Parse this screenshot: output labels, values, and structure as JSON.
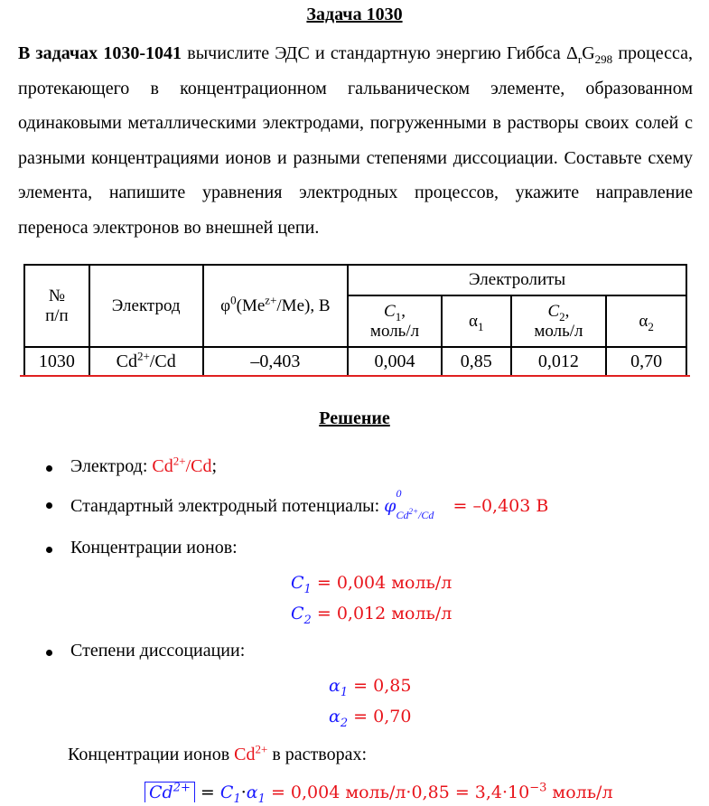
{
  "title": "Задача 1030",
  "intro": [
    "В задачах 1030-1041",
    " вычислите ЭДС и стандартную энергию Гиббса Δ",
    "r",
    "G",
    "298",
    " процесса, протекающего в концентрационном гальваническом элементе, образованном одинаковыми металлическими электродами, погруженными в растворы своих солей с разными концентрациями ионов и разными степенями диссоциации. Составьте схему элемента, напишите уравнения электродных процессов, укажите направление переноса электронов во внешней цепи."
  ],
  "table": {
    "header": {
      "num": [
        "№",
        "п/п"
      ],
      "electrode": "Электрод",
      "potential": [
        "φ",
        "0",
        "(Me",
        "z+",
        "/Me), В"
      ],
      "electrolytes": "Электролиты",
      "c1": [
        "C",
        "1",
        ",",
        "моль/л"
      ],
      "a1": [
        "α",
        "1"
      ],
      "c2": [
        "C",
        "2",
        ",",
        "моль/л"
      ],
      "a2": [
        "α",
        "2"
      ]
    },
    "row": {
      "num": "1030",
      "electrode": [
        "Cd",
        "2+",
        "/Cd"
      ],
      "potential": "–0,403",
      "c1": "0,004",
      "a1": "0,85",
      "c2": "0,012",
      "a2": "0,70"
    }
  },
  "solution": {
    "heading": "Решение",
    "electrode": [
      "Электрод: ",
      "Cd",
      "2+",
      "/Cd",
      ";"
    ],
    "potential": [
      "Стандартный электродный потенциалы: ",
      "φ",
      "0",
      "Cd",
      "2+",
      "/Cd",
      "= –0,403 В"
    ],
    "concentrations": {
      "label": "Концентрации ионов:",
      "c1": [
        "C",
        "1",
        "= 0,004 моль/л"
      ],
      "c2": [
        "C",
        "2",
        "= 0,012 моль/л"
      ]
    },
    "dissociation": {
      "label": "Степени диссоциации:",
      "a1": [
        "α",
        "1",
        "= 0,85"
      ],
      "a2": [
        "α",
        "2",
        "= 0,70"
      ]
    },
    "ion_conc": [
      "Концентрации ионов ",
      "Cd",
      "2+",
      " в растворах:"
    ],
    "formula": [
      "Cd",
      "2+",
      "=",
      "C",
      "1",
      "·",
      "α",
      "1",
      "= 0,004 моль/л·0,85 = 3,4·10",
      "−3",
      " моль/л"
    ]
  }
}
